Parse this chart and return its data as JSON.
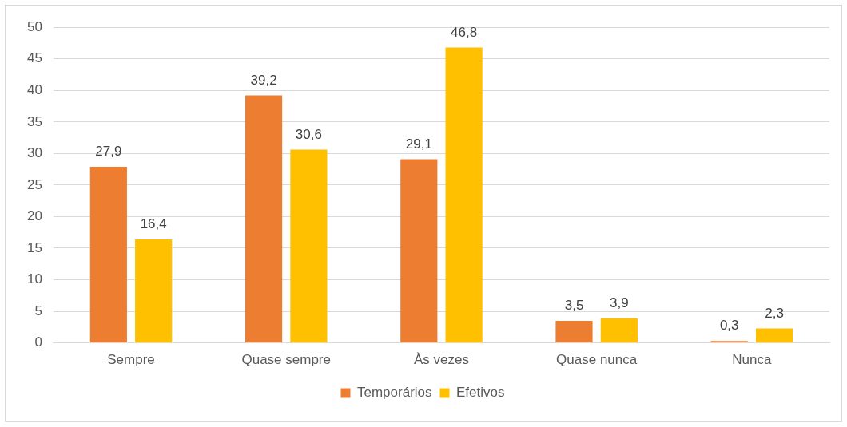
{
  "chart_data": {
    "type": "bar",
    "categories": [
      "Sempre",
      "Quase sempre",
      "Às vezes",
      "Quase nunca",
      "Nunca"
    ],
    "series": [
      {
        "name": "Temporários",
        "color": "#ed7d31",
        "values": [
          27.9,
          39.2,
          29.1,
          3.5,
          0.3
        ],
        "value_labels": [
          "27,9",
          "39,2",
          "29,1",
          "3,5",
          "0,3"
        ]
      },
      {
        "name": "Efetivos",
        "color": "#ffc000",
        "values": [
          16.4,
          30.6,
          46.8,
          3.9,
          2.3
        ],
        "value_labels": [
          "16,4",
          "30,6",
          "46,8",
          "3,9",
          "2,3"
        ]
      }
    ],
    "ylim": [
      0,
      50
    ],
    "yticks": [
      0,
      5,
      10,
      15,
      20,
      25,
      30,
      35,
      40,
      45,
      50
    ],
    "grid": "y",
    "legend": "bottom"
  }
}
